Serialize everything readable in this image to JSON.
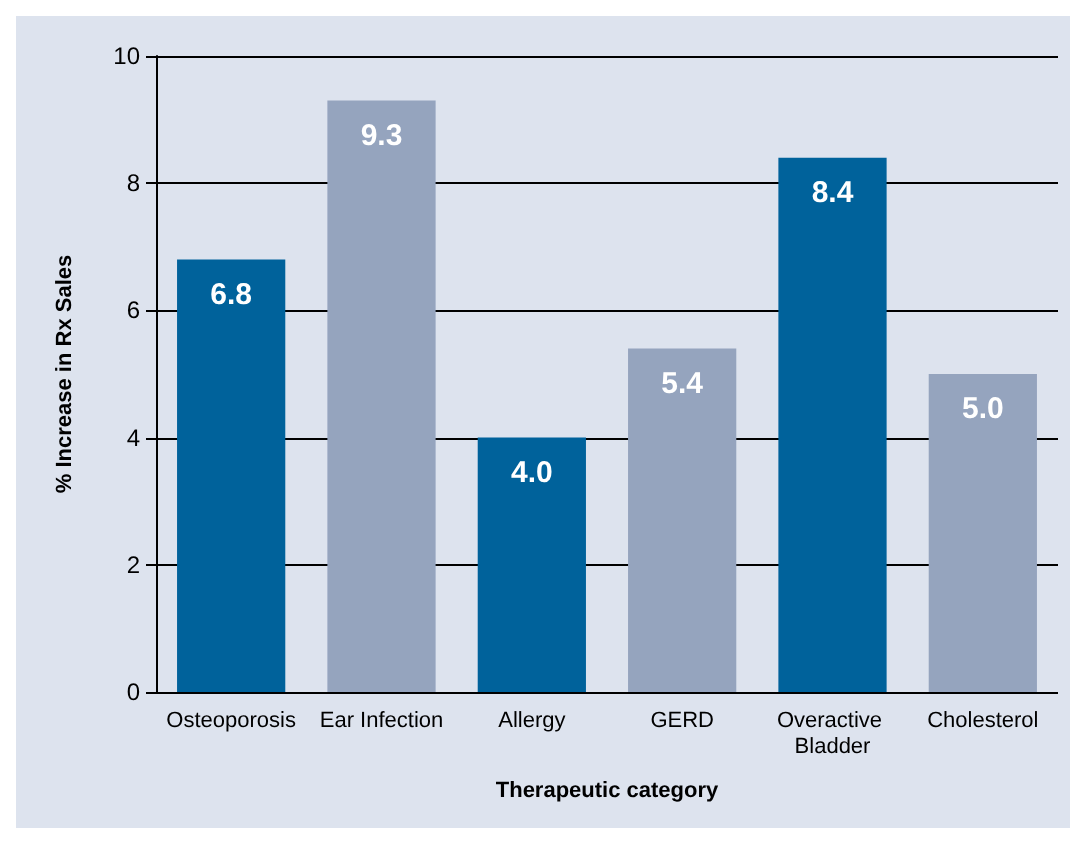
{
  "chart_data": {
    "type": "bar",
    "xlabel": "Therapeutic category",
    "ylabel": "% Increase in Rx Sales",
    "categories": [
      "Osteoporosis",
      "Ear Infection",
      "Allergy",
      "GERD",
      "Overactive Bladder",
      "Cholesterol"
    ],
    "values": [
      6.8,
      9.3,
      4.0,
      5.4,
      8.4,
      5.0
    ],
    "value_labels": [
      "6.8",
      "9.3",
      "4.0",
      "5.4",
      "8.4",
      "5.0"
    ],
    "colors": [
      "#00629b",
      "#95a4be",
      "#00629b",
      "#95a4be",
      "#00629b",
      "#95a4be"
    ],
    "ylim": [
      0,
      10
    ],
    "yticks": [
      0,
      2,
      4,
      6,
      8,
      10
    ],
    "grid": "y"
  }
}
